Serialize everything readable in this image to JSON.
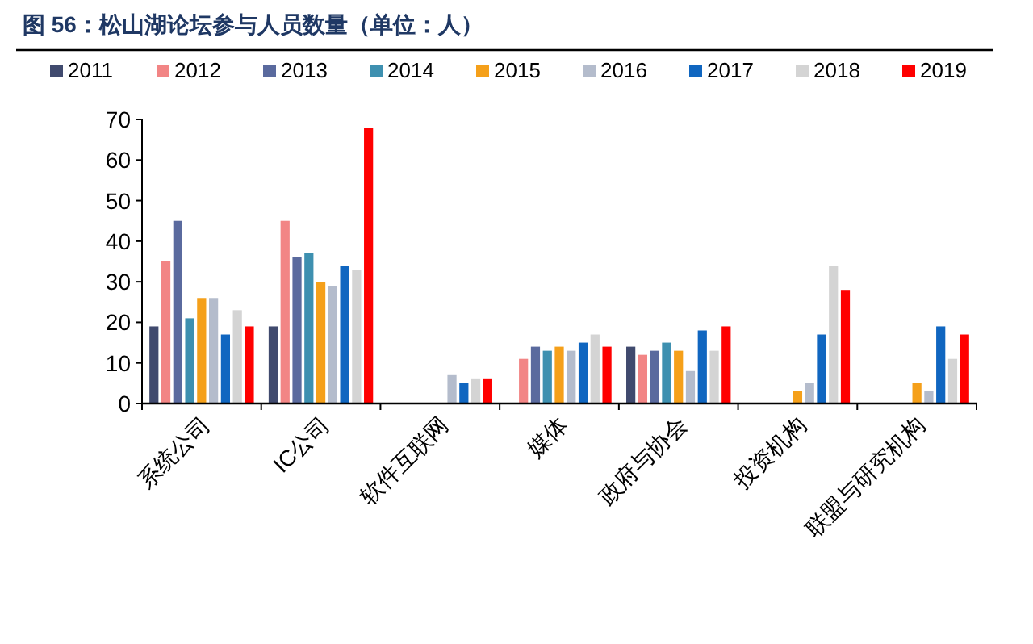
{
  "chart_data": {
    "type": "bar",
    "title": "图 56：松山湖论坛参与人员数量（单位：人）",
    "categories": [
      "系统公司",
      "IC公司",
      "软件互联网",
      "媒体",
      "政府与协会",
      "投资机构",
      "联盟与研究机构"
    ],
    "series": [
      {
        "name": "2011",
        "color": "#404a6e",
        "values": [
          19,
          19,
          null,
          null,
          14,
          null,
          null
        ]
      },
      {
        "name": "2012",
        "color": "#f28585",
        "values": [
          35,
          45,
          null,
          11,
          12,
          null,
          null
        ]
      },
      {
        "name": "2013",
        "color": "#5a6a9e",
        "values": [
          45,
          36,
          null,
          14,
          13,
          null,
          null
        ]
      },
      {
        "name": "2014",
        "color": "#3e90b0",
        "values": [
          21,
          37,
          null,
          13,
          15,
          null,
          null
        ]
      },
      {
        "name": "2015",
        "color": "#f5a01a",
        "values": [
          26,
          30,
          null,
          14,
          13,
          3,
          5
        ]
      },
      {
        "name": "2016",
        "color": "#b4bccc",
        "values": [
          26,
          29,
          7,
          13,
          8,
          5,
          3
        ]
      },
      {
        "name": "2017",
        "color": "#1066c0",
        "values": [
          17,
          34,
          5,
          15,
          18,
          17,
          19
        ]
      },
      {
        "name": "2018",
        "color": "#d4d4d4",
        "values": [
          23,
          33,
          6,
          17,
          13,
          34,
          11
        ]
      },
      {
        "name": "2019",
        "color": "#ff0000",
        "values": [
          19,
          68,
          6,
          14,
          19,
          28,
          17
        ]
      }
    ],
    "ylim": [
      0,
      70
    ],
    "yticks": [
      0,
      10,
      20,
      30,
      40,
      50,
      60,
      70
    ],
    "legend": "top",
    "grid": false
  }
}
